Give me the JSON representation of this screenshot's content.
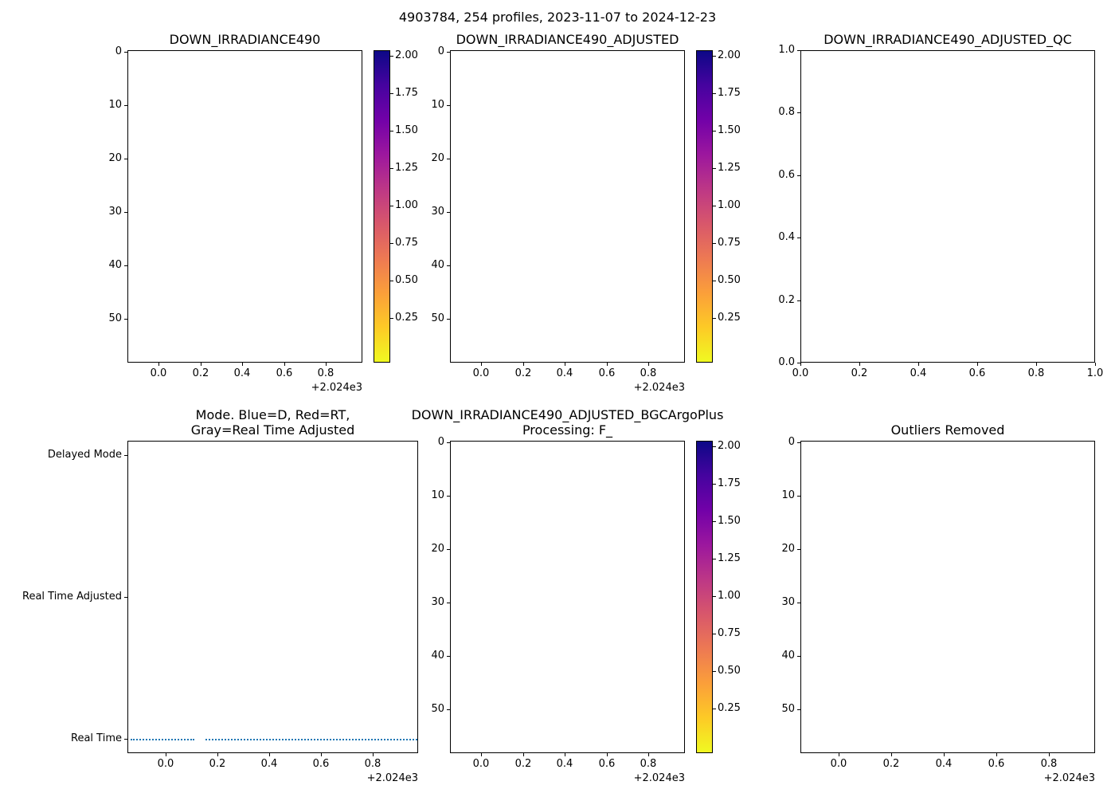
{
  "figure": {
    "suptitle": "4903784, 254 profiles, 2023-11-07 to 2024-12-23",
    "float_id": "4903784",
    "profile_count": "254 profiles",
    "date_start": "2023-11-07",
    "date_end": "2024-12-23"
  },
  "colormap": {
    "name": "plasma (reversed vertically: high=dark blue at top, low=yellow at bottom)",
    "stops": [
      "#0d0887",
      "#46039f",
      "#7201a8",
      "#9c179e",
      "#bd3786",
      "#d8576b",
      "#ed7953",
      "#fb9f3a",
      "#fdca26",
      "#f0f921"
    ]
  },
  "colorbar": {
    "tick_labels": [
      "2.00",
      "1.75",
      "1.50",
      "1.25",
      "1.00",
      "0.75",
      "0.50",
      "0.25"
    ]
  },
  "chart_data": [
    {
      "type": "scatter",
      "title": "DOWN_IRRADIANCE490",
      "x_tick_labels": [
        "0.0",
        "0.2",
        "0.4",
        "0.6",
        "0.8"
      ],
      "x_ticks_values": [
        2024.0,
        2024.2,
        2024.4,
        2024.6,
        2024.8
      ],
      "x_offset_text": "+2.024e3",
      "y_tick_labels": [
        "0",
        "10",
        "20",
        "30",
        "40",
        "50"
      ],
      "xlim": [
        2023.85,
        2024.97
      ],
      "ylim": [
        58,
        0
      ],
      "points": [],
      "has_colorbar": true
    },
    {
      "type": "scatter",
      "title": "DOWN_IRRADIANCE490_ADJUSTED",
      "x_tick_labels": [
        "0.0",
        "0.2",
        "0.4",
        "0.6",
        "0.8"
      ],
      "x_ticks_values": [
        2024.0,
        2024.2,
        2024.4,
        2024.6,
        2024.8
      ],
      "x_offset_text": "+2.024e3",
      "y_tick_labels": [
        "0",
        "10",
        "20",
        "30",
        "40",
        "50"
      ],
      "xlim": [
        2023.85,
        2024.97
      ],
      "ylim": [
        58,
        0
      ],
      "points": [],
      "has_colorbar": true
    },
    {
      "type": "scatter",
      "title": "DOWN_IRRADIANCE490_ADJUSTED_QC",
      "x_tick_labels": [
        "0.0",
        "0.2",
        "0.4",
        "0.6",
        "0.8",
        "1.0"
      ],
      "y_tick_labels": [
        "1.0",
        "0.8",
        "0.6",
        "0.4",
        "0.2",
        "0.0"
      ],
      "xlim": [
        0,
        1
      ],
      "ylim": [
        0,
        1
      ],
      "points": [],
      "has_colorbar": false
    },
    {
      "type": "line",
      "title_lines": [
        "Mode. Blue=D, Red=RT,",
        "Gray=Real Time Adjusted"
      ],
      "x_tick_labels": [
        "0.0",
        "0.2",
        "0.4",
        "0.6",
        "0.8"
      ],
      "x_ticks_values": [
        2024.0,
        2024.2,
        2024.4,
        2024.6,
        2024.8
      ],
      "x_offset_text": "+2.024e3",
      "y_tick_labels": [
        "Delayed Mode",
        "Real Time Adjusted",
        "Real Time"
      ],
      "xlim": [
        2023.85,
        2024.97
      ],
      "series": [
        {
          "name": "mode",
          "color": "#1f77b4",
          "linestyle": "dotted",
          "level": "Real Time",
          "segments_x": [
            [
              2023.86,
              2024.11
            ],
            [
              2024.15,
              2024.97
            ]
          ]
        }
      ]
    },
    {
      "type": "scatter",
      "title_lines": [
        "DOWN_IRRADIANCE490_ADJUSTED_BGCArgoPlus",
        "Processing: F_"
      ],
      "x_tick_labels": [
        "0.0",
        "0.2",
        "0.4",
        "0.6",
        "0.8"
      ],
      "x_ticks_values": [
        2024.0,
        2024.2,
        2024.4,
        2024.6,
        2024.8
      ],
      "x_offset_text": "+2.024e3",
      "y_tick_labels": [
        "0",
        "10",
        "20",
        "30",
        "40",
        "50"
      ],
      "xlim": [
        2023.85,
        2024.97
      ],
      "ylim": [
        58,
        0
      ],
      "points": [],
      "has_colorbar": true
    },
    {
      "type": "scatter",
      "title": "Outliers Removed",
      "x_tick_labels": [
        "0.0",
        "0.2",
        "0.4",
        "0.6",
        "0.8"
      ],
      "x_ticks_values": [
        2024.0,
        2024.2,
        2024.4,
        2024.6,
        2024.8
      ],
      "x_offset_text": "+2.024e3",
      "y_tick_labels": [
        "0",
        "10",
        "20",
        "30",
        "40",
        "50"
      ],
      "xlim": [
        2023.85,
        2024.97
      ],
      "ylim": [
        58,
        0
      ],
      "points": [],
      "has_colorbar": false
    }
  ]
}
